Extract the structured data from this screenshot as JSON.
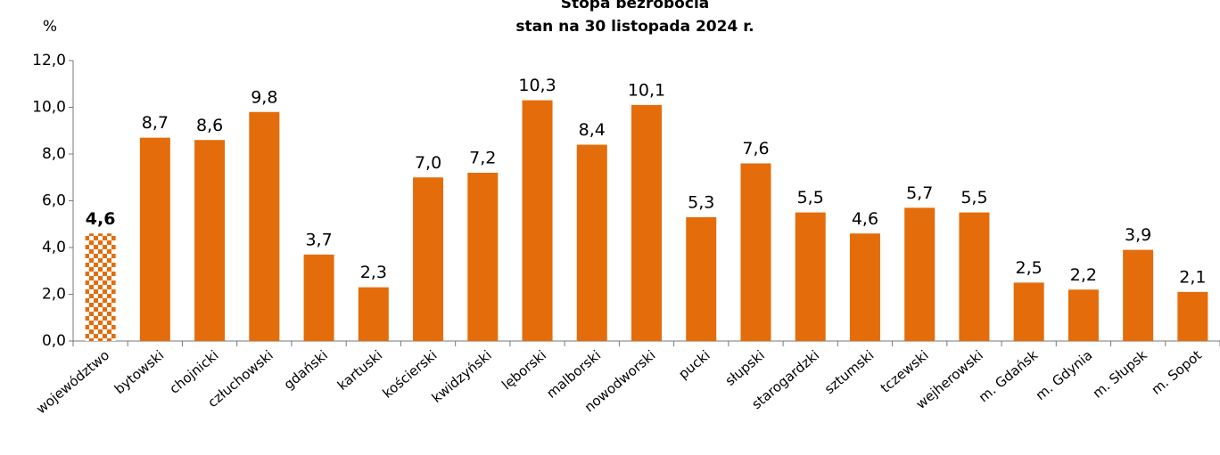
{
  "chart_data": {
    "type": "bar",
    "title": "Stopa bezrobocia",
    "subtitle": "stan na 30 listopada 2024 r.",
    "y_label": "%",
    "categories": [
      "województwo",
      "bytowski",
      "chojnicki",
      "człuchowski",
      "gdański",
      "kartuski",
      "kościerski",
      "kwidzyński",
      "lęborski",
      "malborski",
      "nowodworski",
      "pucki",
      "słupski",
      "starogardzki",
      "sztumski",
      "tczewski",
      "wejherowski",
      "m. Gdańsk",
      "m. Gdynia",
      "m. Słupsk",
      "m. Sopot"
    ],
    "values": [
      4.6,
      8.7,
      8.6,
      9.8,
      3.7,
      2.3,
      7.0,
      7.2,
      10.3,
      8.4,
      10.1,
      5.3,
      7.6,
      5.5,
      4.6,
      5.7,
      5.5,
      2.5,
      2.2,
      3.9,
      2.1
    ],
    "value_labels": [
      "4,6",
      "8,7",
      "8,6",
      "9,8",
      "3,7",
      "2,3",
      "7,0",
      "7,2",
      "10,3",
      "8,4",
      "10,1",
      "5,3",
      "7,6",
      "5,5",
      "4,6",
      "5,7",
      "5,5",
      "2,5",
      "2,2",
      "3,9",
      "2,1"
    ],
    "color": "#e46c0a",
    "highlight_categories": [
      "województwo"
    ],
    "ylim": [
      0,
      12
    ],
    "yticks": [
      {
        "value": 0,
        "label": "0,0"
      },
      {
        "value": 2,
        "label": "2,0"
      },
      {
        "value": 4,
        "label": "4,0"
      },
      {
        "value": 6,
        "label": "6,0"
      },
      {
        "value": 8,
        "label": "8,0"
      },
      {
        "value": 10,
        "label": "10,0"
      },
      {
        "value": 12,
        "label": "12,0"
      }
    ],
    "grid": false
  }
}
